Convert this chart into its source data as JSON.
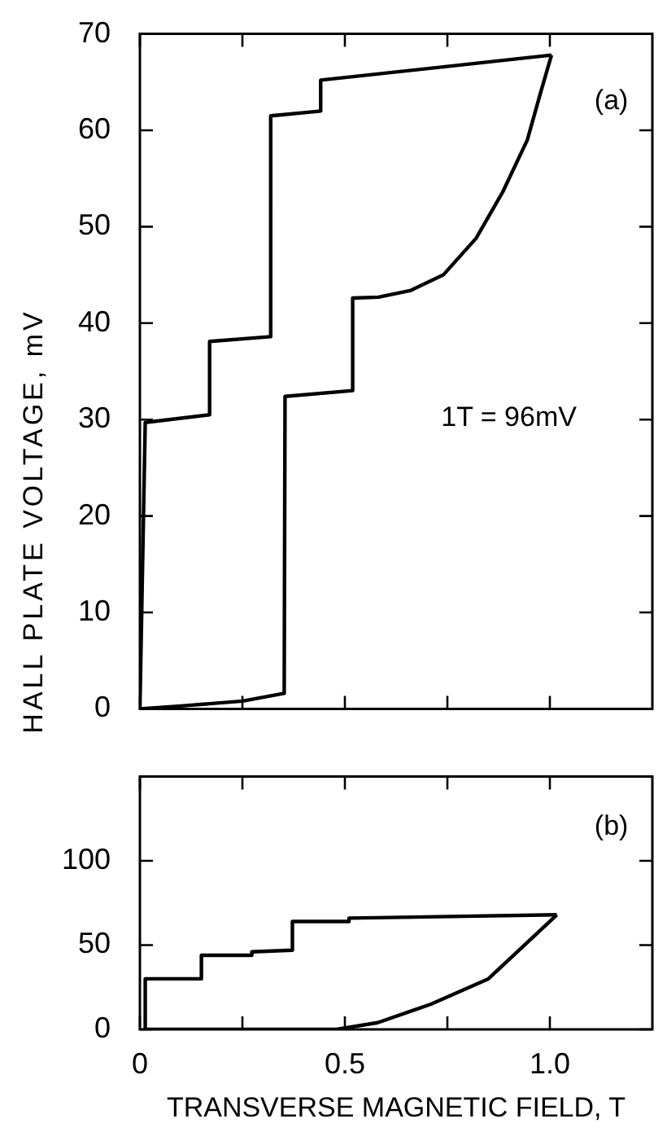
{
  "chart_data": [
    {
      "type": "line",
      "ylabel": "HALL PLATE VOLTAGE, mV",
      "annotations": [
        "(a)",
        "1T = 96mV"
      ],
      "tick_labels": "y",
      "xlim": [
        0,
        1.25
      ],
      "xticks": [
        {
          "value": 0,
          "label": null
        },
        {
          "value": 0.25,
          "label": null
        },
        {
          "value": 0.5,
          "label": null
        },
        {
          "value": 0.75,
          "label": null
        },
        {
          "value": 1.0,
          "label": null
        }
      ],
      "ylim": [
        0,
        70
      ],
      "yticks": [
        0,
        10,
        20,
        30,
        40,
        50,
        60,
        70
      ],
      "series": [
        {
          "color": "#000000",
          "x": [
            0,
            0.013,
            0.17,
            0.17,
            0.319,
            0.319,
            0.441,
            0.441,
            1.004
          ],
          "values": [
            0,
            29.7,
            30.5,
            38.1,
            38.6,
            61.5,
            62,
            65.2,
            67.8
          ]
        },
        {
          "color": "#000000",
          "x": [
            0,
            0.1,
            0.25,
            0.352,
            0.354,
            0.519,
            0.519,
            0.582,
            0.661,
            0.74,
            0.82,
            0.885,
            0.945,
            0.978,
            1.004
          ],
          "values": [
            0,
            0.3,
            0.8,
            1.6,
            32.4,
            33,
            42.6,
            42.7,
            43.4,
            45,
            48.8,
            53.6,
            59,
            64,
            67.8
          ]
        }
      ]
    },
    {
      "type": "line",
      "xlabel": "TRANSVERSE MAGNETIC FIELD, T",
      "annotations": [
        "(b)"
      ],
      "xlim": [
        0,
        1.25
      ],
      "xticks": [
        0,
        {
          "value": 0.25,
          "label": null
        },
        {
          "value": 0.5,
          "label": "0.5"
        },
        {
          "value": 0.75,
          "label": null
        },
        {
          "value": 1.0,
          "label": "1.0"
        }
      ],
      "ylim": [
        0,
        150
      ],
      "yticks": [
        0,
        50,
        100
      ],
      "series": [
        {
          "color": "#000000",
          "x": [
            0.013,
            0.013,
            0.15,
            0.15,
            0.273,
            0.273,
            0.372,
            0.372,
            0.51,
            0.51,
            1.017
          ],
          "values": [
            0,
            30,
            30,
            44,
            44,
            46,
            47,
            64,
            64,
            66,
            68
          ]
        },
        {
          "color": "#000000",
          "x": [
            0.013,
            0.48,
            0.58,
            0.71,
            0.85,
            1.017
          ],
          "values": [
            0,
            0,
            4,
            15,
            30,
            68
          ]
        }
      ]
    }
  ]
}
